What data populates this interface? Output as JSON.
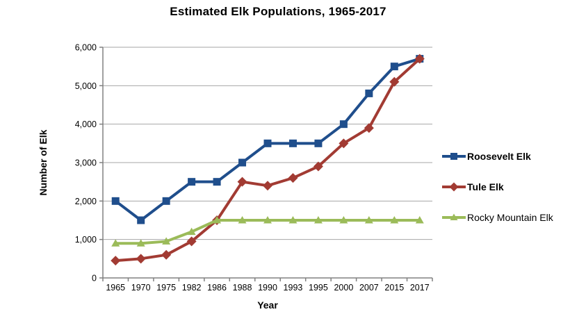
{
  "title": "Estimated Elk Populations, 1965-2017",
  "chart_data": {
    "type": "line",
    "categories": [
      "1965",
      "1970",
      "1975",
      "1982",
      "1986",
      "1988",
      "1990",
      "1993",
      "1995",
      "2000",
      "2007",
      "2015",
      "2017"
    ],
    "series": [
      {
        "name": "Roosevelt Elk",
        "color": "#1F4E8C",
        "marker": "square",
        "values": [
          2000,
          1500,
          2000,
          2500,
          2500,
          3000,
          3500,
          3500,
          3500,
          4000,
          4800,
          5500,
          5700
        ]
      },
      {
        "name": "Tule Elk",
        "color": "#A23B33",
        "marker": "diamond",
        "values": [
          450,
          500,
          600,
          950,
          1500,
          2500,
          2400,
          2600,
          2900,
          3500,
          3900,
          5100,
          5700
        ]
      },
      {
        "name": "Rocky Mountain Elk",
        "color": "#9BBB59",
        "marker": "triangle",
        "values": [
          900,
          900,
          950,
          1200,
          1500,
          1500,
          1500,
          1500,
          1500,
          1500,
          1500,
          1500,
          1500
        ]
      }
    ],
    "xlabel": "Year",
    "ylabel": "Number of Elk",
    "ylim": [
      0,
      6000
    ],
    "y_ticks": [
      "0",
      "1,000",
      "2,000",
      "3,000",
      "4,000",
      "5,000",
      "6,000"
    ],
    "grid": true,
    "legend_position": "right"
  },
  "style_colors": {
    "gridline": "#A6A6A6",
    "axis": "#808080",
    "tick_text": "#000000"
  }
}
